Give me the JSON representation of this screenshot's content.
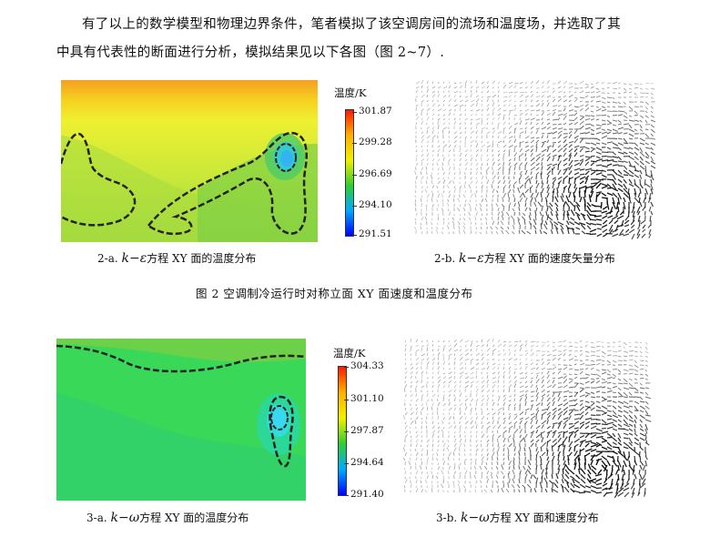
{
  "paragraph": {
    "line1": "有了以上的数学模型和物理边界条件，笔者模拟了该空调房间的流场和温度场，并选取了其",
    "line2": "中具有代表性的断面进行分析，模拟结果见以下各图（图 2~7）."
  },
  "figure2": {
    "colorbar_title": "温度/K",
    "ticks": [
      "301.87",
      "299.28",
      "296.69",
      "294.10",
      "291.51"
    ],
    "caption_a_prefix": "2-a.",
    "caption_a_model": "k−ε",
    "caption_a_text": "方程 XY 面的温度分布",
    "caption_b_prefix": "2-b.",
    "caption_b_model": "k−ε",
    "caption_b_text": "方程 XY 面的速度矢量分布",
    "title": "图 2   空调制冷运行时对称立面 XY 面速度和温度分布"
  },
  "figure3": {
    "colorbar_title": "温度/K",
    "ticks": [
      "304.33",
      "301.10",
      "297.87",
      "294.64",
      "291.40"
    ],
    "caption_a_prefix": "3-a.",
    "caption_a_model": "k−ω",
    "caption_a_text": "方程 XY 面的温度分布",
    "caption_b_prefix": "3-b.",
    "caption_b_model": "k−ω",
    "caption_b_text": "方程 XY 面和速度分布"
  },
  "colors": {
    "gradient": [
      "#ff0000",
      "#ffaa00",
      "#ffff00",
      "#00cc33",
      "#00aaff",
      "#0000ff"
    ]
  }
}
